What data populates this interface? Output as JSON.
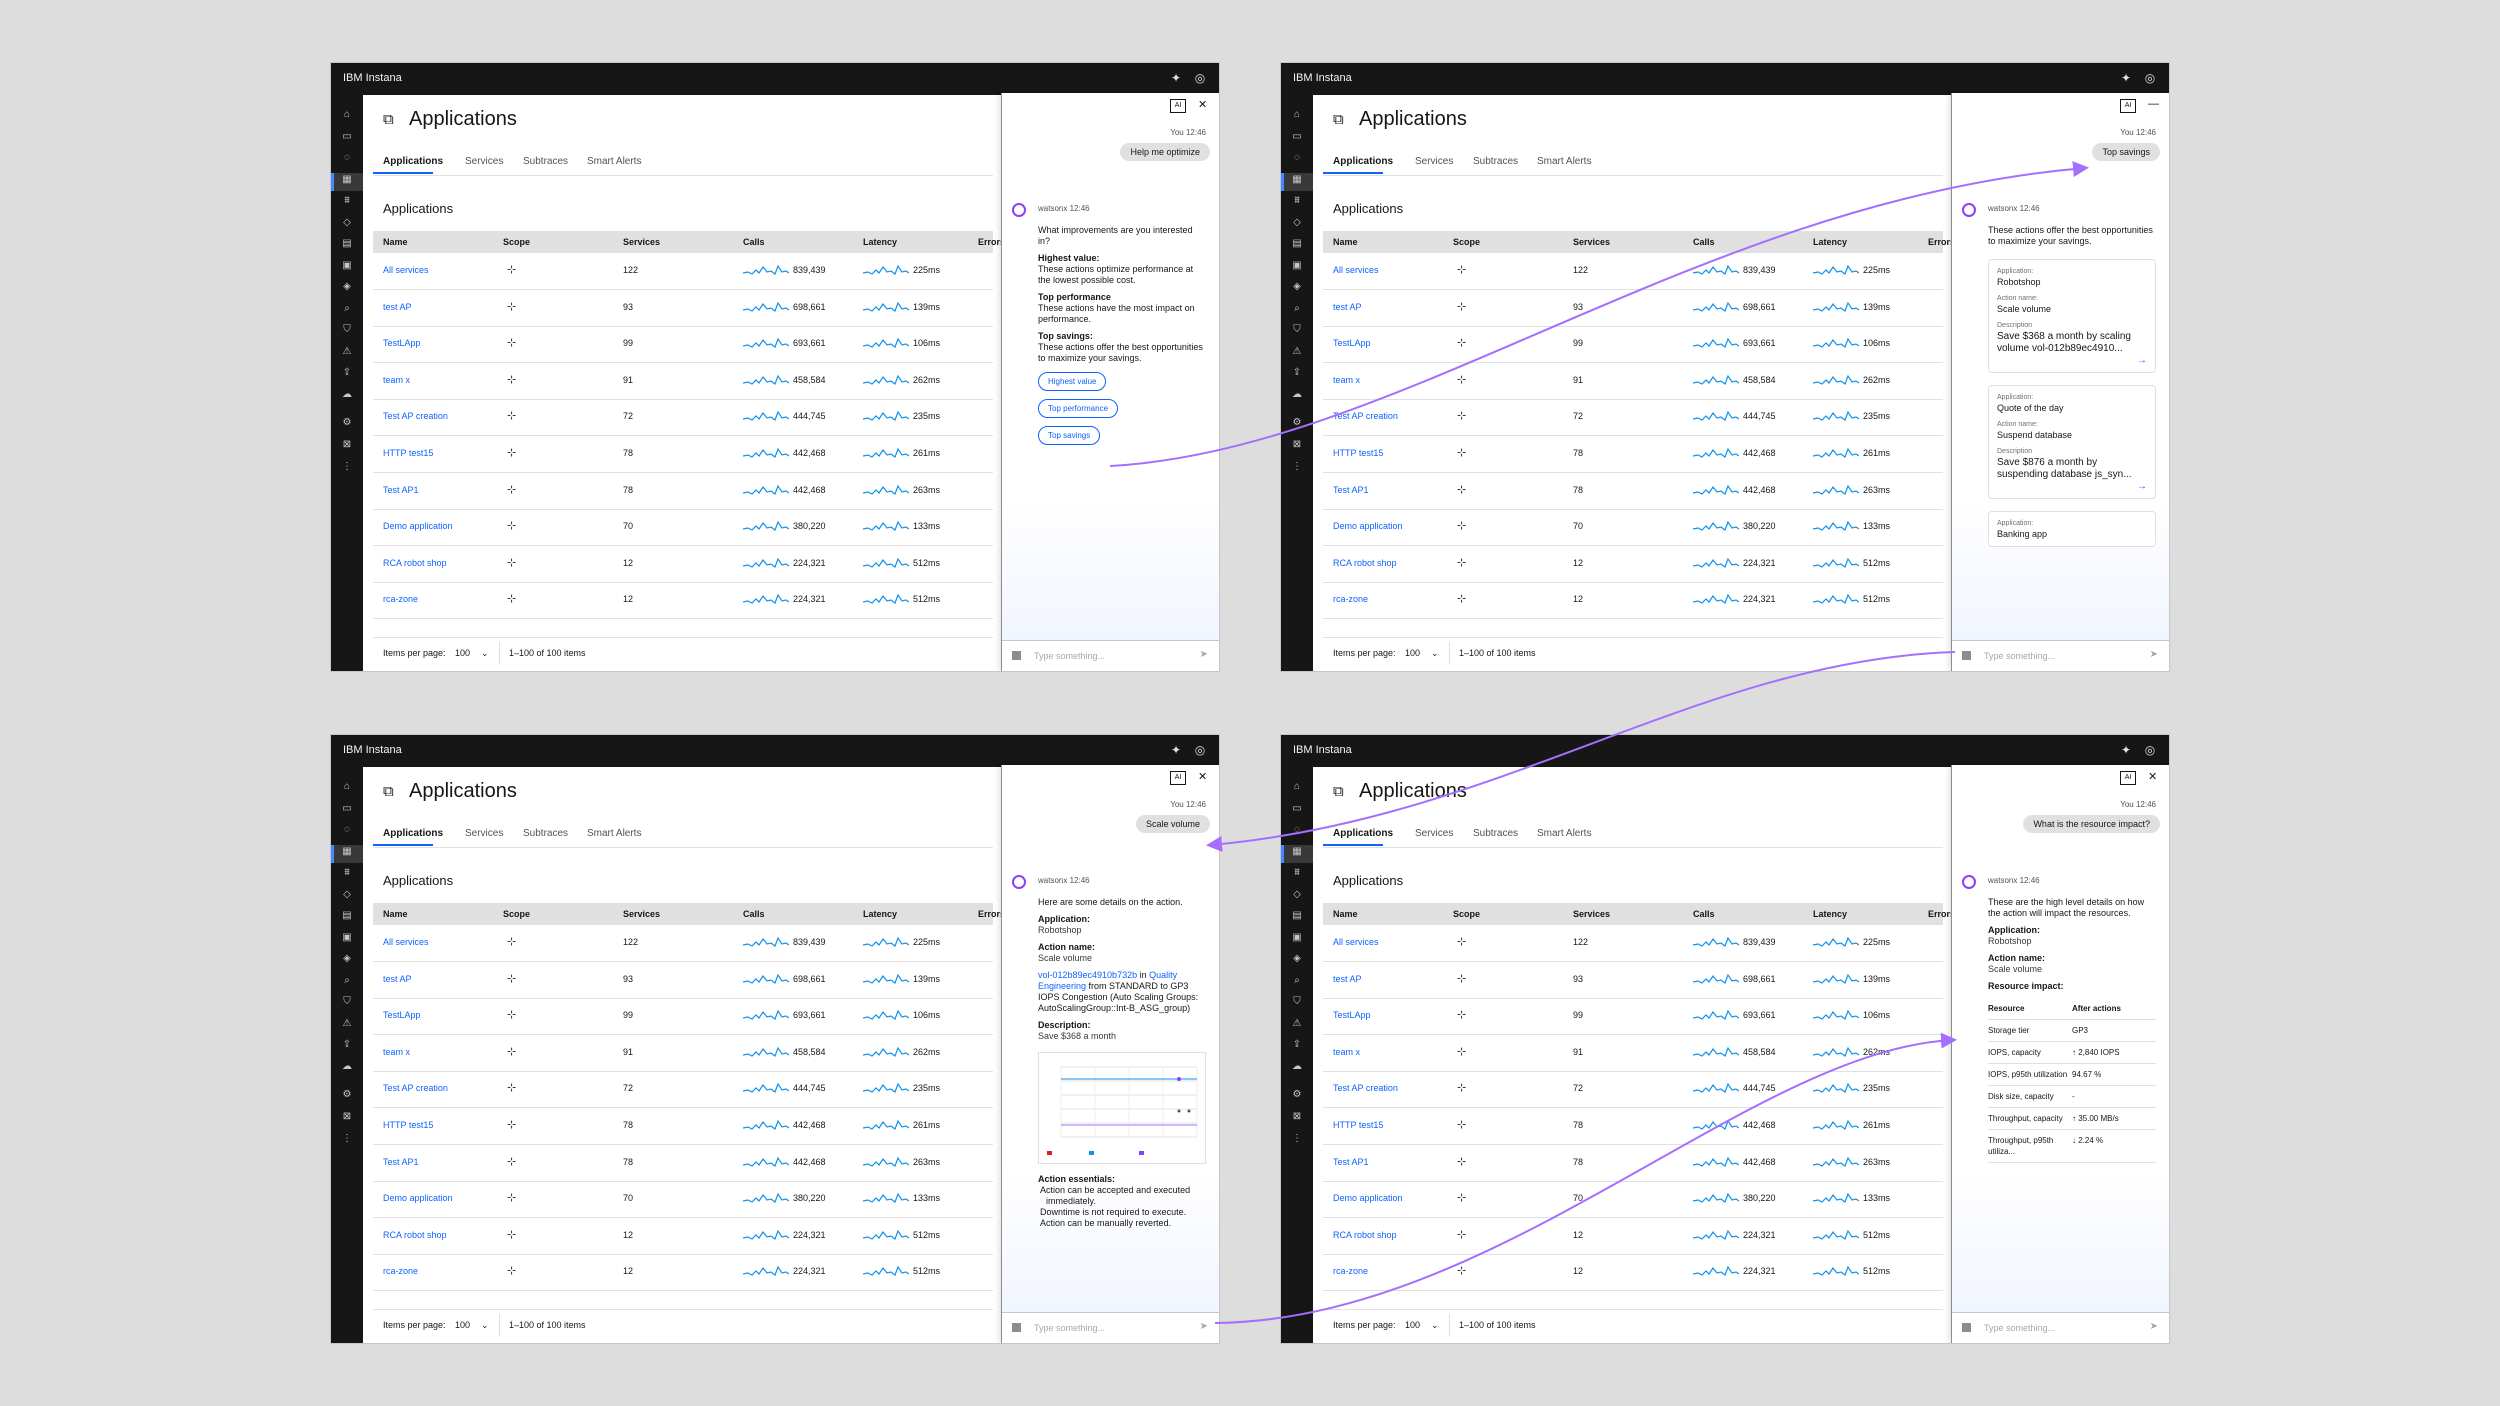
{
  "app": {
    "brand": "IBM Instana",
    "page_title": "Applications",
    "tabs": [
      "Applications",
      "Services",
      "Subtraces",
      "Smart Alerts"
    ],
    "section_title": "Applications",
    "columns": [
      "Name",
      "Scope",
      "Services",
      "Calls",
      "Latency",
      "Errors"
    ],
    "rows": [
      {
        "name": "All services",
        "services": "122",
        "calls": "839,439",
        "latency": "225ms"
      },
      {
        "name": "test AP",
        "services": "93",
        "calls": "698,661",
        "latency": "139ms"
      },
      {
        "name": "TestLApp",
        "services": "99",
        "calls": "693,661",
        "latency": "106ms"
      },
      {
        "name": "team x",
        "services": "91",
        "calls": "458,584",
        "latency": "262ms"
      },
      {
        "name": "Test AP creation",
        "services": "72",
        "calls": "444,745",
        "latency": "235ms"
      },
      {
        "name": "HTTP test15",
        "services": "78",
        "calls": "442,468",
        "latency": "261ms"
      },
      {
        "name": "Test AP1",
        "services": "78",
        "calls": "442,468",
        "latency": "263ms"
      },
      {
        "name": "Demo application",
        "services": "70",
        "calls": "380,220",
        "latency": "133ms"
      },
      {
        "name": "RCA robot shop",
        "services": "12",
        "calls": "224,321",
        "latency": "512ms"
      },
      {
        "name": "rca-zone",
        "services": "12",
        "calls": "224,321",
        "latency": "512ms"
      }
    ],
    "footer": {
      "items_per_page_label": "Items per page:",
      "items_per_page": "100",
      "range": "1–100 of 100 items"
    }
  },
  "chat": {
    "ai_label": "AI",
    "you_meta": "You 12:46",
    "bot_meta": "watsonx 12:46",
    "input_placeholder": "Type something...",
    "panels": [
      {
        "user_message": "Help me optimize",
        "intro": "What improvements are you interested in?",
        "options": [
          {
            "title": "Highest value:",
            "desc": "These actions optimize performance at the lowest possible cost."
          },
          {
            "title": "Top performance",
            "desc": "These actions have the most impact on performance."
          },
          {
            "title": "Top savings:",
            "desc": "These actions offer the best opportunities to maximize your savings."
          }
        ],
        "buttons": [
          "Highest value",
          "Top performance",
          "Top savings"
        ]
      },
      {
        "user_message": "Top savings",
        "intro": "These actions offer the best opportunities to maximize your savings.",
        "cards": [
          {
            "app_label": "Application:",
            "app": "Robotshop",
            "action_label": "Action name:",
            "action": "Scale volume",
            "desc_label": "Description",
            "desc": "Save $368 a month by scaling volume vol-012b89ec4910..."
          },
          {
            "app_label": "Application:",
            "app": "Quote of the day",
            "action_label": "Action name:",
            "action": "Suspend database",
            "desc_label": "Description",
            "desc": "Save $876 a month by suspending database js_syn..."
          },
          {
            "app_label": "Application:",
            "app": "Banking app"
          }
        ]
      },
      {
        "user_message": "Scale volume",
        "intro": "Here are some details on the action.",
        "application_label": "Application:",
        "application": "Robotshop",
        "action_label": "Action name:",
        "action": "Scale volume",
        "volume_link": "vol-012b89ec4910b732b",
        "in_text": " in ",
        "org_link": "Quality Engineering",
        "from_text": " from STANDARD to GP3 IOPS Congestion (Auto Scaling Groups: AutoScalingGroup::Int-B_ASG_group)",
        "description_label": "Description:",
        "description": "Save $368 a month",
        "essentials_label": "Action essentials:",
        "essentials": [
          "Action can be accepted and executed immediately.",
          "Downtime is not required to execute.",
          "Action can be manually reverted."
        ]
      },
      {
        "user_message": "What is the resource impact?",
        "intro": "These are the high level details on how the action will impact the resources.",
        "application_label": "Application:",
        "application": "Robotshop",
        "action_label": "Action name:",
        "action": "Scale volume",
        "impact_label": "Resource impact:",
        "impact_headers": [
          "Resource",
          "After actions"
        ],
        "impact_rows": [
          {
            "resource": "Storage tier",
            "after": "GP3"
          },
          {
            "resource": "IOPS, capacity",
            "after": "↑ 2,840 IOPS"
          },
          {
            "resource": "IOPS, p95th utilization",
            "after": "94.67 %"
          },
          {
            "resource": "Disk size, capacity",
            "after": "-"
          },
          {
            "resource": "Throughput, capacity",
            "after": "↑ 35.00 MB/s"
          },
          {
            "resource": "Throughput, p95th utiliza...",
            "after": "↓ 2.24 %"
          }
        ]
      }
    ]
  },
  "colors": {
    "accent": "#0f62fe",
    "flow": "#a56eff",
    "topbar": "#161616",
    "spark": "#1192e8"
  }
}
